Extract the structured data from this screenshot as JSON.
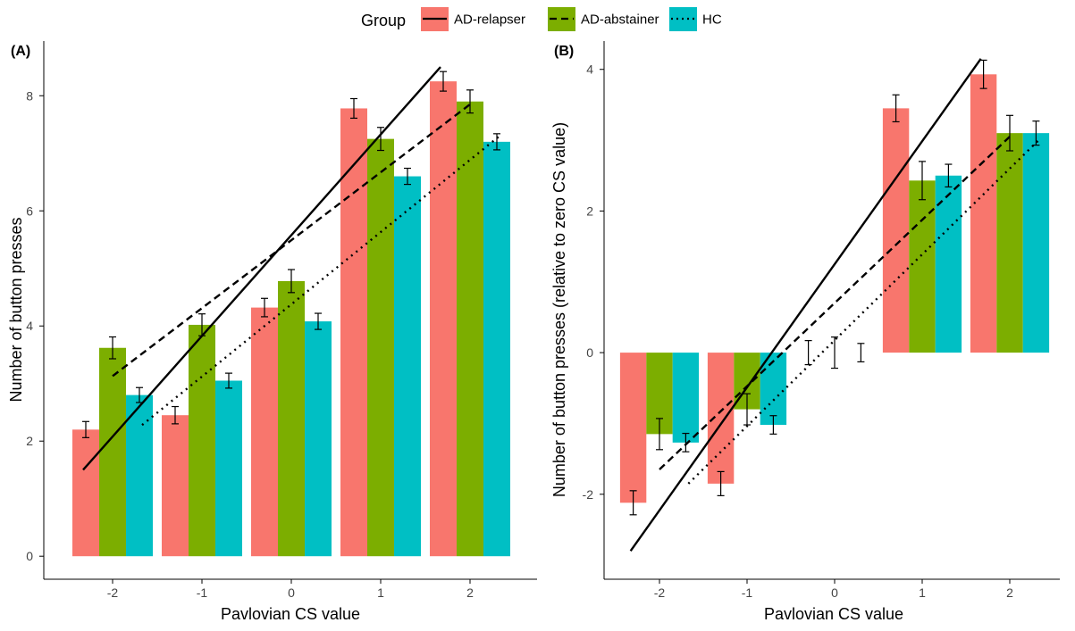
{
  "legend": {
    "title": "Group",
    "placement": "top",
    "entries": [
      {
        "label": "AD-relapser",
        "color": "#F8766D",
        "line": "solid"
      },
      {
        "label": "AD-abstainer",
        "color": "#7CAE00",
        "line": "dashed"
      },
      {
        "label": "HC",
        "color": "#00BFC4",
        "line": "dotted"
      }
    ]
  },
  "chart_data": [
    {
      "type": "bar",
      "panel_label": "(A)",
      "xlabel": "Pavlovian CS value",
      "ylabel": "Number of button presses",
      "categories": [
        "-2",
        "-1",
        "0",
        "1",
        "2"
      ],
      "x": [
        -2,
        -1,
        0,
        1,
        2
      ],
      "ylim": [
        -0.4,
        8.95
      ],
      "yticks": [
        0,
        2,
        4,
        6,
        8
      ],
      "grid": false,
      "series": [
        {
          "name": "AD-relapser",
          "color": "#F8766D",
          "values": [
            2.2,
            2.45,
            4.32,
            7.78,
            8.25
          ],
          "errors": [
            0.14,
            0.15,
            0.16,
            0.17,
            0.17
          ]
        },
        {
          "name": "AD-abstainer",
          "color": "#7CAE00",
          "values": [
            3.62,
            4.02,
            4.78,
            7.25,
            7.9
          ],
          "errors": [
            0.19,
            0.19,
            0.2,
            0.2,
            0.2
          ]
        },
        {
          "name": "HC",
          "color": "#00BFC4",
          "values": [
            2.8,
            3.05,
            4.08,
            6.6,
            7.2
          ],
          "errors": [
            0.13,
            0.13,
            0.14,
            0.14,
            0.14
          ]
        }
      ],
      "fit_lines": [
        {
          "group": "AD-relapser",
          "style": "solid",
          "from": [
            -2.33,
            1.5
          ],
          "to": [
            1.67,
            8.5
          ]
        },
        {
          "group": "AD-abstainer",
          "style": "dashed",
          "from": [
            -2.0,
            3.13
          ],
          "to": [
            2.0,
            7.85
          ]
        },
        {
          "group": "HC",
          "style": "dotted",
          "from": [
            -1.67,
            2.28
          ],
          "to": [
            2.33,
            7.3
          ]
        }
      ]
    },
    {
      "type": "bar",
      "panel_label": "(B)",
      "xlabel": "Pavlovian CS value",
      "ylabel": "Number of button presses (relative to zero CS value)",
      "categories": [
        "-2",
        "-1",
        "0",
        "1",
        "2"
      ],
      "x": [
        -2,
        -1,
        0,
        1,
        2
      ],
      "ylim": [
        -3.2,
        4.4
      ],
      "yticks": [
        -2,
        0,
        2,
        4
      ],
      "grid": false,
      "series": [
        {
          "name": "AD-relapser",
          "color": "#F8766D",
          "values": [
            -2.12,
            -1.85,
            0,
            3.45,
            3.93
          ],
          "errors": [
            0.17,
            0.17,
            0.17,
            0.19,
            0.2
          ]
        },
        {
          "name": "AD-abstainer",
          "color": "#7CAE00",
          "values": [
            -1.15,
            -0.8,
            0,
            2.43,
            3.1
          ],
          "errors": [
            0.22,
            0.22,
            0.22,
            0.27,
            0.25
          ]
        },
        {
          "name": "HC",
          "color": "#00BFC4",
          "values": [
            -1.27,
            -1.02,
            0,
            2.5,
            3.1
          ],
          "errors": [
            0.13,
            0.13,
            0.13,
            0.16,
            0.17
          ]
        }
      ],
      "fit_lines": [
        {
          "group": "AD-relapser",
          "style": "solid",
          "from": [
            -2.33,
            -2.8
          ],
          "to": [
            1.67,
            4.15
          ]
        },
        {
          "group": "AD-abstainer",
          "style": "dashed",
          "from": [
            -2.0,
            -1.65
          ],
          "to": [
            2.0,
            3.05
          ]
        },
        {
          "group": "HC",
          "style": "dotted",
          "from": [
            -1.67,
            -1.85
          ],
          "to": [
            2.33,
            3.0
          ]
        }
      ]
    }
  ]
}
